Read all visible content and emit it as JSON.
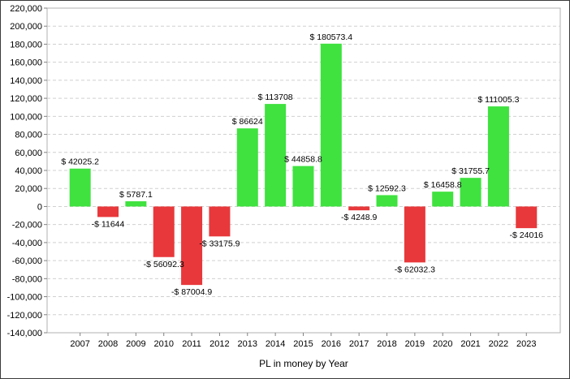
{
  "chart_data": {
    "type": "bar",
    "title": "",
    "xlabel": "PL in money by Year",
    "ylabel": "",
    "ylim": [
      -140000,
      220000
    ],
    "y_ticks": [
      220000,
      200000,
      180000,
      160000,
      140000,
      120000,
      100000,
      80000,
      60000,
      40000,
      20000,
      0,
      -20000,
      -40000,
      -60000,
      -80000,
      -100000,
      -120000,
      -140000
    ],
    "y_tick_labels": [
      "220,000",
      "200,000",
      "180,000",
      "160,000",
      "140,000",
      "120,000",
      "100,000",
      "80,000",
      "60,000",
      "40,000",
      "20,000",
      "0",
      "-20,000",
      "-40,000",
      "-60,000",
      "-80,000",
      "-100,000",
      "-120,000",
      "-140,000"
    ],
    "grid": "horizontal dashed",
    "categories": [
      "2007",
      "2008",
      "2009",
      "2010",
      "2011",
      "2012",
      "2013",
      "2014",
      "2015",
      "2016",
      "2017",
      "2018",
      "2019",
      "2020",
      "2021",
      "2022",
      "2023"
    ],
    "values": [
      42025.2,
      -11644,
      5787.1,
      -56092.3,
      -87004.9,
      -33175.9,
      86624,
      113708,
      44858.8,
      180573.4,
      -4248.9,
      12592.3,
      -62032.3,
      16458.8,
      31755.7,
      111005.3,
      -24016
    ],
    "data_labels": [
      "$ 42025.2",
      "-$ 11644",
      "$ 5787.1",
      "-$ 56092.3",
      "-$ 87004.9",
      "-$ 33175.9",
      "$ 86624",
      "$ 113708",
      "$ 44858.8",
      "$ 180573.4",
      "-$ 4248.9",
      "$ 12592.3",
      "-$ 62032.3",
      "$ 16458.8",
      "$ 31755.7",
      "$ 111005.3",
      "-$ 24016"
    ],
    "colors": {
      "positive": "#3fe23f",
      "negative": "#e8383b"
    }
  }
}
